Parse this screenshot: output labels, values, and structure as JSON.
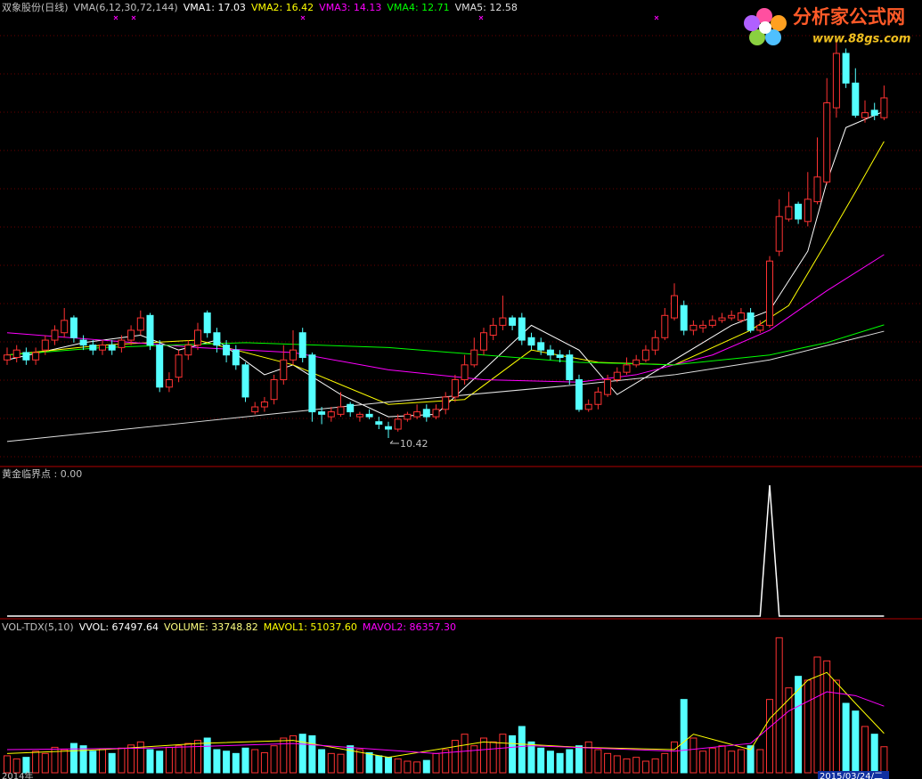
{
  "watermark": {
    "site_name": "分析家公式网",
    "url": "www.88gs.com"
  },
  "footer_labels": [
    "2014年",
    "2015/03/24/二"
  ],
  "chart_data": [
    {
      "type": "candlestick",
      "title": "双象股份(日线)",
      "indicator": "VMA(6,12,30,72,144)",
      "ylim": [
        9.88,
        19.01
      ],
      "grid": true,
      "up_color": "#ff3232",
      "down_color": "#54ffff",
      "annotation": 10.42,
      "open": [
        12.0,
        12.05,
        12.15,
        12.0,
        12.2,
        12.4,
        12.55,
        12.85,
        12.4,
        12.3,
        12.2,
        12.3,
        12.25,
        12.4,
        12.6,
        12.9,
        12.3,
        11.45,
        11.65,
        12.1,
        12.3,
        12.95,
        12.55,
        12.3,
        12.2,
        11.9,
        10.95,
        11.05,
        11.2,
        11.6,
        12.0,
        12.55,
        12.1,
        10.95,
        10.85,
        10.9,
        11.1,
        10.85,
        10.9,
        10.75,
        10.65,
        10.6,
        10.8,
        10.85,
        11.0,
        10.85,
        11.0,
        11.25,
        11.6,
        11.9,
        12.2,
        12.5,
        12.7,
        12.85,
        12.85,
        12.45,
        12.35,
        12.2,
        12.1,
        12.1,
        11.6,
        11.0,
        11.1,
        11.3,
        11.6,
        11.75,
        11.9,
        12.0,
        12.2,
        12.45,
        12.85,
        13.1,
        12.6,
        12.65,
        12.7,
        12.8,
        12.85,
        12.8,
        12.95,
        12.6,
        12.7,
        14.2,
        14.85,
        15.15,
        14.8,
        15.2,
        15.6,
        17.1,
        18.2,
        17.6,
        16.9,
        17.05,
        16.9
      ],
      "high": [
        12.25,
        12.3,
        12.25,
        12.25,
        12.5,
        12.7,
        13.05,
        12.9,
        12.5,
        12.4,
        12.4,
        12.4,
        12.5,
        12.7,
        13.0,
        12.95,
        12.4,
        11.75,
        12.2,
        12.4,
        12.75,
        13.0,
        12.65,
        12.4,
        12.3,
        11.95,
        11.15,
        11.25,
        11.7,
        12.3,
        12.6,
        12.65,
        12.15,
        11.05,
        11.05,
        11.35,
        11.15,
        10.95,
        11.0,
        10.85,
        10.75,
        10.9,
        10.95,
        11.1,
        11.1,
        11.1,
        11.35,
        11.7,
        12.1,
        12.45,
        12.65,
        12.85,
        13.3,
        12.9,
        12.95,
        12.55,
        12.45,
        12.3,
        12.2,
        12.2,
        11.7,
        11.2,
        11.45,
        11.7,
        11.85,
        12.05,
        12.1,
        12.3,
        12.6,
        13.05,
        13.55,
        13.2,
        12.8,
        12.8,
        12.9,
        12.95,
        13.0,
        13.05,
        13.05,
        12.8,
        14.1,
        15.25,
        15.4,
        15.2,
        15.8,
        16.5,
        17.7,
        18.5,
        18.3,
        17.9,
        17.25,
        17.2,
        17.55
      ],
      "low": [
        11.9,
        11.95,
        11.9,
        11.9,
        12.1,
        12.3,
        12.45,
        12.35,
        12.2,
        12.1,
        12.1,
        12.1,
        12.15,
        12.3,
        12.5,
        12.2,
        11.35,
        11.35,
        11.55,
        12.0,
        12.2,
        12.45,
        12.15,
        11.95,
        11.8,
        11.15,
        10.9,
        10.95,
        11.1,
        11.5,
        11.9,
        11.95,
        10.75,
        10.7,
        10.75,
        10.85,
        10.85,
        10.75,
        10.8,
        10.6,
        10.42,
        10.55,
        10.75,
        10.8,
        10.75,
        10.8,
        10.9,
        11.15,
        11.5,
        11.85,
        12.1,
        12.4,
        12.6,
        12.6,
        12.3,
        12.2,
        12.1,
        12.0,
        11.95,
        11.5,
        10.95,
        10.95,
        11.0,
        11.25,
        11.55,
        11.7,
        11.85,
        11.95,
        12.1,
        12.4,
        12.8,
        12.5,
        12.5,
        12.55,
        12.65,
        12.75,
        12.8,
        12.75,
        12.55,
        12.55,
        12.65,
        14.1,
        14.8,
        14.75,
        14.7,
        15.15,
        15.55,
        16.9,
        17.5,
        16.9,
        16.8,
        16.85,
        16.85
      ],
      "close": [
        12.1,
        12.2,
        12.0,
        12.15,
        12.4,
        12.6,
        12.8,
        12.45,
        12.3,
        12.2,
        12.3,
        12.2,
        12.4,
        12.6,
        12.85,
        12.3,
        11.45,
        11.6,
        12.1,
        12.3,
        12.6,
        12.55,
        12.3,
        12.1,
        11.9,
        11.25,
        11.05,
        11.15,
        11.6,
        12.0,
        12.2,
        12.05,
        10.95,
        10.9,
        10.95,
        11.05,
        10.95,
        10.9,
        10.85,
        10.7,
        10.6,
        10.8,
        10.9,
        10.95,
        10.85,
        11.0,
        11.25,
        11.6,
        11.9,
        12.2,
        12.55,
        12.7,
        12.85,
        12.7,
        12.4,
        12.3,
        12.2,
        12.1,
        12.05,
        11.6,
        11.0,
        11.1,
        11.35,
        11.6,
        11.75,
        11.9,
        12.0,
        12.2,
        12.45,
        12.9,
        13.3,
        12.6,
        12.7,
        12.7,
        12.8,
        12.85,
        12.9,
        12.95,
        12.6,
        12.7,
        14.0,
        14.9,
        15.1,
        14.85,
        15.25,
        15.7,
        17.2,
        18.2,
        17.6,
        16.95,
        17.0,
        16.95,
        17.3
      ],
      "series": [
        {
          "label": "VMA1: 17.03",
          "color": "#ffffff",
          "x": [
            0,
            8,
            14,
            18,
            22,
            27,
            30,
            35,
            40,
            45,
            50,
            55,
            60,
            64,
            70,
            76,
            80,
            84,
            86,
            88,
            92
          ],
          "values": [
            12.0,
            12.35,
            12.5,
            12.2,
            12.4,
            11.7,
            11.9,
            11.3,
            10.85,
            10.9,
            11.8,
            12.7,
            12.2,
            11.3,
            12.0,
            12.7,
            13.0,
            14.2,
            15.6,
            16.7,
            17.03
          ]
        },
        {
          "label": "VMA2: 16.42",
          "color": "#ffff00",
          "x": [
            0,
            10,
            20,
            30,
            40,
            48,
            55,
            62,
            70,
            78,
            82,
            86,
            89,
            92
          ],
          "values": [
            12.1,
            12.3,
            12.4,
            11.9,
            11.1,
            11.2,
            12.2,
            11.95,
            11.9,
            12.6,
            13.1,
            14.4,
            15.4,
            16.42
          ]
        },
        {
          "label": "VMA3: 14.13",
          "color": "#ff00ff",
          "x": [
            0,
            10,
            20,
            30,
            40,
            50,
            60,
            66,
            74,
            80,
            86,
            92
          ],
          "values": [
            12.55,
            12.4,
            12.25,
            12.15,
            11.8,
            11.6,
            11.55,
            11.7,
            12.1,
            12.6,
            13.4,
            14.13
          ]
        },
        {
          "label": "VMA4: 12.71",
          "color": "#00ff00",
          "x": [
            0,
            10,
            25,
            40,
            50,
            60,
            70,
            80,
            86,
            92
          ],
          "values": [
            12.1,
            12.25,
            12.35,
            12.25,
            12.1,
            11.95,
            11.9,
            12.1,
            12.35,
            12.71
          ]
        },
        {
          "label": "VMA5: 12.58",
          "color": "#e0e0e0",
          "x": [
            0,
            20,
            40,
            60,
            70,
            80,
            92
          ],
          "values": [
            10.35,
            10.75,
            11.15,
            11.5,
            11.7,
            12.0,
            12.58
          ]
        }
      ]
    },
    {
      "type": "line",
      "label": "黄金临界点 : 0.00",
      "ylim": [
        0,
        1
      ],
      "color": "#ffffff",
      "x": [
        0,
        79,
        80,
        81,
        92
      ],
      "values": [
        0,
        0,
        1,
        0,
        0
      ]
    },
    {
      "type": "bar",
      "title": "VOL-TDX(5,10)",
      "extra_label": "VVOL: 67497.64",
      "ylim": [
        0,
        180000
      ],
      "label": "VOLUME: 33748.82",
      "values": [
        22000,
        18000,
        20000,
        28000,
        25000,
        33000,
        30000,
        38000,
        35000,
        28000,
        30000,
        25000,
        32000,
        36000,
        40000,
        30000,
        28000,
        33000,
        35000,
        38000,
        42000,
        45000,
        30000,
        28000,
        25000,
        32000,
        30000,
        26000,
        35000,
        45000,
        48000,
        50000,
        48000,
        30000,
        25000,
        24000,
        35000,
        30000,
        26000,
        22000,
        20000,
        18000,
        15000,
        14000,
        16000,
        25000,
        30000,
        42000,
        50000,
        35000,
        45000,
        40000,
        50000,
        48000,
        60000,
        40000,
        32000,
        28000,
        25000,
        30000,
        35000,
        40000,
        30000,
        25000,
        22000,
        18000,
        20000,
        15000,
        18000,
        25000,
        40000,
        95000,
        45000,
        28000,
        32000,
        35000,
        28000,
        30000,
        35000,
        30000,
        95000,
        175000,
        110000,
        125000,
        120000,
        150000,
        145000,
        120000,
        90000,
        80000,
        60000,
        50000,
        33748.82
      ],
      "series": [
        {
          "label": "MAVOL1: 51037.60",
          "color": "#ffff00",
          "x": [
            0,
            10,
            20,
            30,
            40,
            50,
            60,
            70,
            72,
            78,
            80,
            84,
            86,
            89,
            92
          ],
          "values": [
            25000,
            30000,
            38000,
            42000,
            20000,
            40000,
            33000,
            30000,
            50000,
            30000,
            70000,
            120000,
            130000,
            90000,
            51037.6
          ]
        },
        {
          "label": "MAVOL2: 86357.30",
          "color": "#ff00ff",
          "x": [
            0,
            15,
            30,
            45,
            55,
            70,
            78,
            82,
            86,
            89,
            92
          ],
          "values": [
            30000,
            32000,
            38000,
            25000,
            35000,
            28000,
            38000,
            80000,
            105000,
            100000,
            86357.3
          ]
        }
      ]
    }
  ]
}
